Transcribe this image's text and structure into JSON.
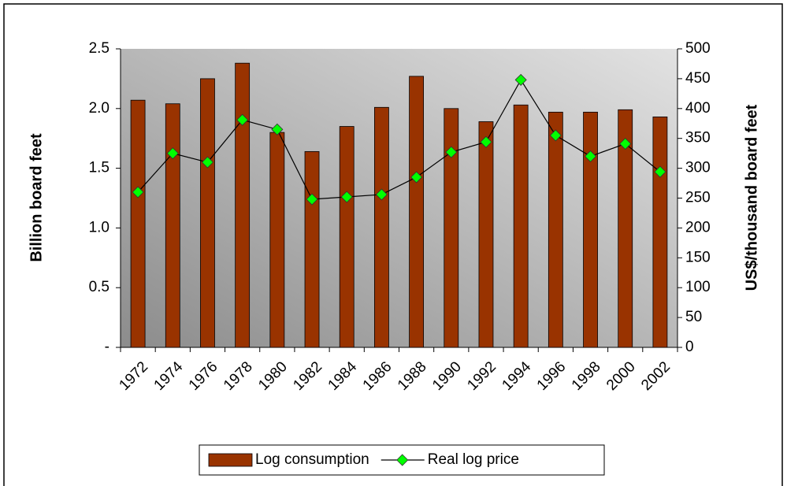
{
  "chart_data": {
    "type": "bar",
    "categories": [
      "1972",
      "1974",
      "1976",
      "1978",
      "1980",
      "1982",
      "1984",
      "1986",
      "1988",
      "1990",
      "1992",
      "1994",
      "1996",
      "1998",
      "2000",
      "2002"
    ],
    "y_label": "Billion board feet",
    "y2_label": "US$/thousand board feet",
    "series": [
      {
        "name": "Log consumption",
        "type": "bar",
        "color": "#993300",
        "values": [
          2.07,
          2.04,
          2.25,
          2.38,
          1.8,
          1.64,
          1.85,
          2.01,
          2.27,
          2.0,
          1.89,
          2.03,
          1.97,
          1.97,
          1.99,
          1.93
        ]
      },
      {
        "name": "Real log price",
        "type": "line",
        "axis": "y2",
        "color": "#000000",
        "marker_color": "#00ff00",
        "values": [
          260,
          325,
          310,
          381,
          365,
          248,
          252,
          256,
          285,
          327,
          344,
          448,
          355,
          320,
          341,
          294
        ]
      }
    ],
    "ylim": [
      0,
      2.5
    ],
    "yticks": [
      {
        "value": 0,
        "label": "-"
      },
      0.5,
      {
        "value": 1,
        "label": "1.0"
      },
      1.5,
      {
        "value": 2,
        "label": "2.0"
      },
      2.5
    ],
    "y2lim": [
      0,
      500
    ],
    "y2ticks": [
      0,
      50,
      100,
      150,
      200,
      250,
      300,
      350,
      400,
      450,
      500
    ],
    "legend": "bottom"
  }
}
